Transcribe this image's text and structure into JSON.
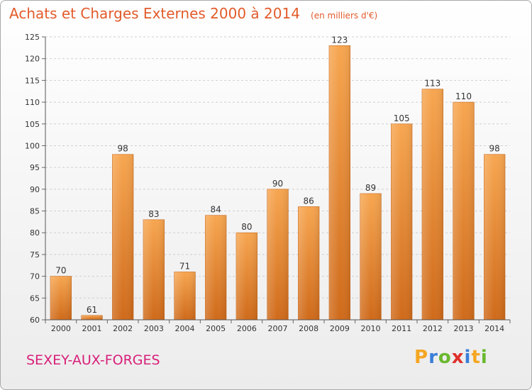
{
  "title": "Achats et Charges Externes 2000 à 2014",
  "subtitle": "(en milliers d'€)",
  "commune": "SEXEY-AUX-FORGES",
  "logo": {
    "letters": [
      "P",
      "r",
      "o",
      "x",
      "i",
      "t",
      "i"
    ],
    "colors": [
      "#f5a623",
      "#3b7fd8",
      "#6ab82e",
      "#e0302a",
      "#3b7fd8",
      "#f5a623",
      "#6ab82e"
    ]
  },
  "colors": {
    "title": "#e25b2b",
    "commune": "#d8207a",
    "bar_top": "#f7a650",
    "bar_bottom": "#cf6a1a",
    "grid": "#cfcfcf"
  },
  "chart_data": {
    "type": "bar",
    "categories": [
      "2000",
      "2001",
      "2002",
      "2003",
      "2004",
      "2005",
      "2006",
      "2007",
      "2008",
      "2009",
      "2010",
      "2011",
      "2012",
      "2013",
      "2014"
    ],
    "values": [
      70,
      61,
      98,
      83,
      71,
      84,
      80,
      90,
      86,
      123,
      89,
      105,
      113,
      110,
      98
    ],
    "ylim": [
      60,
      125
    ],
    "yticks": [
      60,
      65,
      70,
      75,
      80,
      85,
      90,
      95,
      100,
      105,
      110,
      115,
      120,
      125
    ],
    "grid": true
  }
}
